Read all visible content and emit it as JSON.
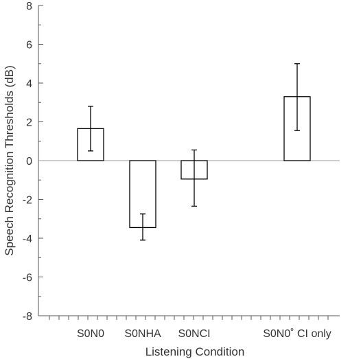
{
  "chart_data": {
    "type": "bar",
    "xlabel": "Listening Condition",
    "ylabel": "Speech Recognition Thresholds (dB)",
    "ylim": [
      -8,
      8
    ],
    "yticks": [
      8,
      6,
      4,
      2,
      0,
      -2,
      -4,
      -6,
      -8
    ],
    "ytick_labels": [
      "8",
      "6",
      "4",
      "2",
      "0",
      "-2",
      "-4",
      "-6",
      "-8"
    ],
    "grid": false,
    "zero_line": true,
    "categories": [
      "S0N0",
      "S0NHA",
      "S0NCI",
      "S0N0˚ CI only"
    ],
    "values": [
      1.65,
      -3.45,
      -0.95,
      3.3
    ],
    "error_low": [
      0.5,
      -4.1,
      -2.35,
      1.55
    ],
    "error_high": [
      2.8,
      -2.75,
      0.55,
      5.0
    ]
  }
}
